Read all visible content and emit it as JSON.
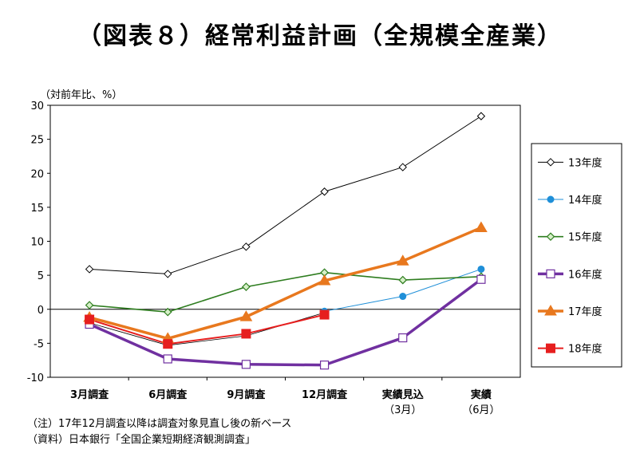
{
  "title": "（図表８）経常利益計画（全規模全産業）",
  "notes": {
    "note1": "（注）17年12月調査以降は調査対象見直し後の新ベース",
    "note2": "（資料）日本銀行「全国企業短期経済観測調査」"
  },
  "chart_data": {
    "type": "line",
    "title": "（図表８）経常利益計画（全規模全産業）",
    "ylabel": "（対前年比、%）",
    "xlabel": "",
    "ylim": [
      -10,
      30
    ],
    "yticks": [
      -10,
      -5,
      0,
      5,
      10,
      15,
      20,
      25,
      30
    ],
    "grid": false,
    "legend_position": "right",
    "categories": [
      [
        "3月調査"
      ],
      [
        "6月調査"
      ],
      [
        "9月調査"
      ],
      [
        "12月調査"
      ],
      [
        "実績見込",
        "（3月）"
      ],
      [
        "実績",
        "（6月）"
      ]
    ],
    "series": [
      {
        "name": "13年度",
        "values": [
          5.9,
          5.2,
          9.2,
          17.3,
          20.9,
          28.4
        ],
        "color": "#000000",
        "marker": "diamond-open",
        "width": 1
      },
      {
        "name": "14年度",
        "values": [
          null,
          null,
          null,
          -0.3,
          1.9,
          5.9
        ],
        "color": "#1f8fd8",
        "marker": "circle",
        "width": 1
      },
      {
        "name": "15年度",
        "values": [
          0.6,
          -0.4,
          3.3,
          5.4,
          4.3,
          4.8
        ],
        "color": "#2e7d1f",
        "marker": "diamond-open-green",
        "width": 1.6
      },
      {
        "name": "16年度",
        "values": [
          -2.2,
          -7.3,
          -8.1,
          -8.2,
          -4.2,
          4.4
        ],
        "color": "#7030a0",
        "marker": "square-open",
        "width": 3.5
      },
      {
        "name": "17年度",
        "values": [
          -1.2,
          -4.3,
          -1.1,
          4.2,
          7.1,
          12.0
        ],
        "color": "#e8781e",
        "marker": "triangle",
        "width": 3.5
      },
      {
        "name": "18年度",
        "values": [
          -1.5,
          -5.1,
          -3.6,
          -0.8,
          null,
          null
        ],
        "color": "#e61e1e",
        "marker": "square",
        "width": 2
      }
    ],
    "extra_lines": [
      {
        "note": "unlabeled thin line",
        "values": [
          -2.0,
          -5.3,
          -3.9,
          -0.5,
          null,
          null
        ],
        "color": "#000000",
        "width": 0.8
      }
    ]
  }
}
